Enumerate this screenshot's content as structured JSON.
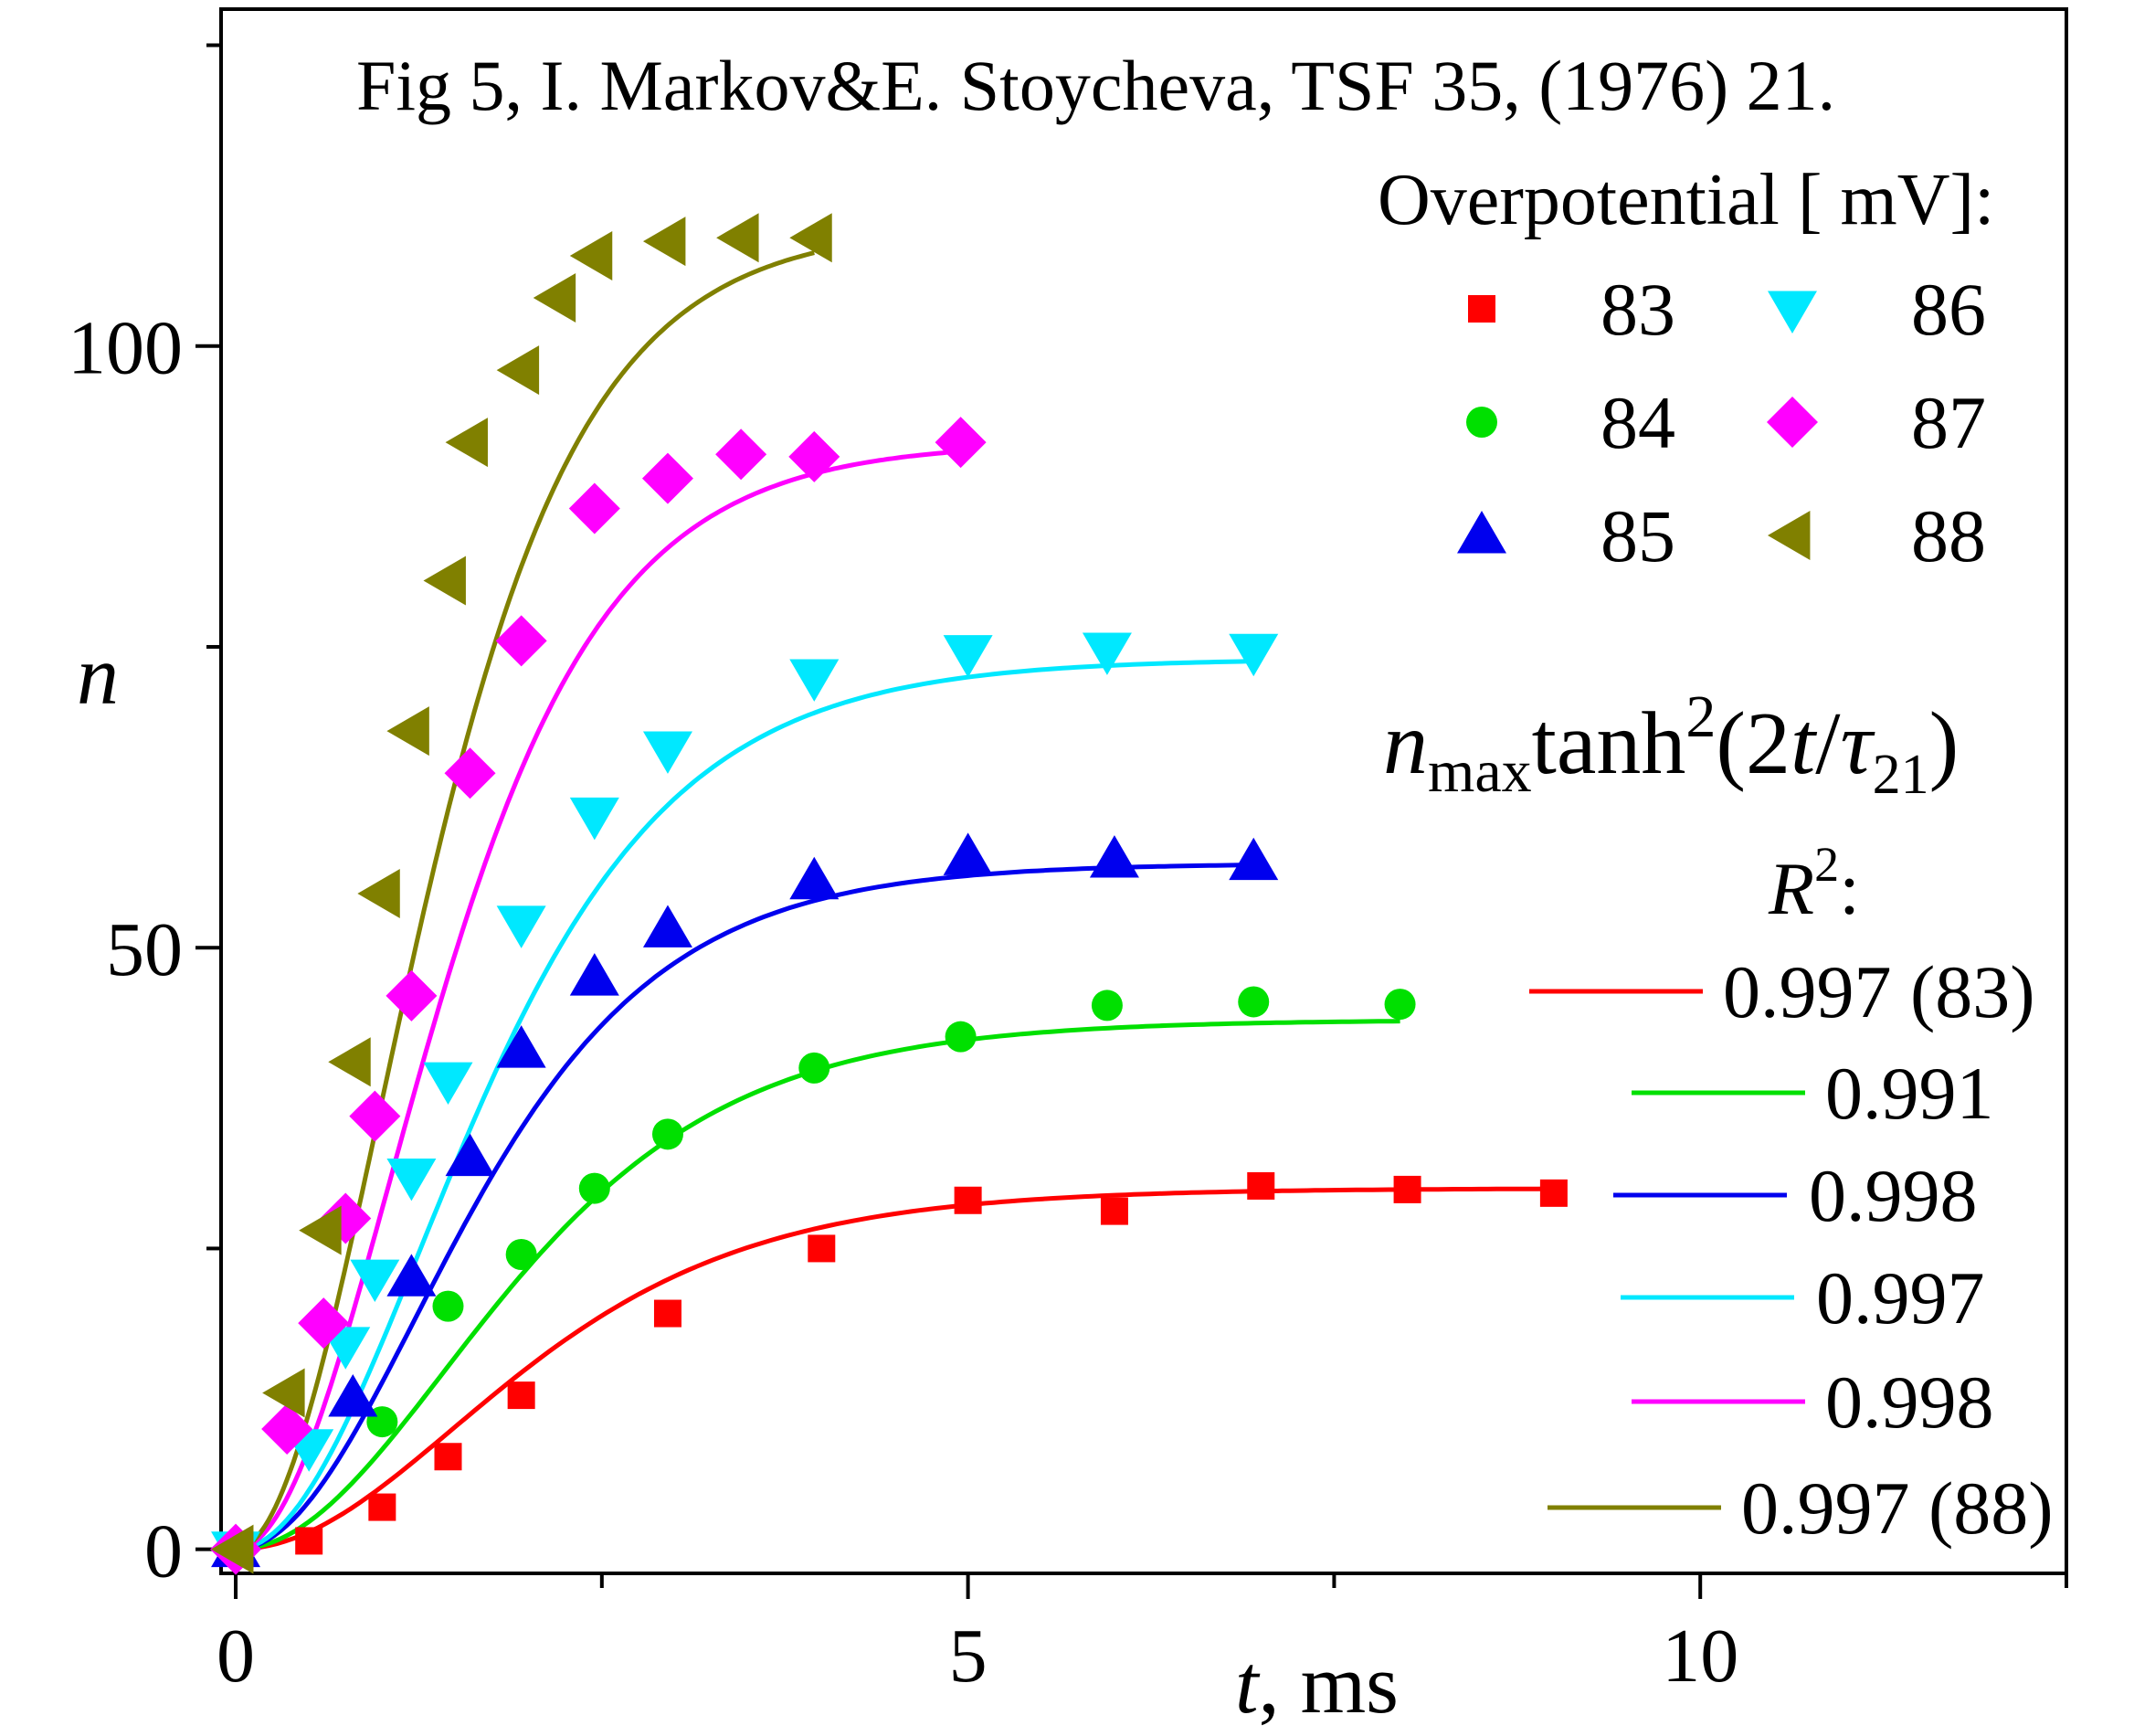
{
  "chart_data": {
    "type": "scatter",
    "title": "Fig 5,  I. Markov&E. Stoycheva, TSF 35, (1976) 21.",
    "xlabel": {
      "var": "t",
      "unit": ", ms"
    },
    "ylabel": "n",
    "xlim": [
      -0.1,
      12.5
    ],
    "ylim": [
      -2,
      128
    ],
    "x_ticks": [
      {
        "value": 0,
        "label": "0"
      },
      {
        "value": 5,
        "label": "5"
      },
      {
        "value": 10,
        "label": "10"
      }
    ],
    "y_ticks": [
      {
        "value": 0,
        "label": "0"
      },
      {
        "value": 50,
        "label": "50"
      },
      {
        "value": 100,
        "label": "100"
      }
    ],
    "x_minor_ticks": [
      2.5,
      7.5,
      12.5
    ],
    "y_minor_ticks": [
      25,
      75,
      125
    ],
    "legend_title": "Overpotential [ mV]:",
    "fit_label": {
      "n": "n",
      "max": "max",
      "tanh": "tanh",
      "sq": "2",
      "open": "(2",
      "t": "t",
      "slash": "/",
      "tau": "τ",
      "sub21": "21",
      "close": ")"
    },
    "r2_label": {
      "R": "R",
      "sq": "2",
      "colon": ":"
    },
    "series": [
      {
        "name": "83",
        "color": "#ff0000",
        "marker": "square",
        "nmax": 30,
        "tau": 4.5,
        "r2": "0.997 (83)",
        "x": [
          0.0,
          0.5,
          1.0,
          1.45,
          1.95,
          2.95,
          4.0,
          5.0,
          6.0,
          7.0,
          8.0,
          9.0
        ],
        "y": [
          0.0,
          0.7,
          3.5,
          7.7,
          12.8,
          19.6,
          25.0,
          29.0,
          28.1,
          30.2,
          29.9,
          29.6
        ]
      },
      {
        "name": "84",
        "color": "#00e000",
        "marker": "circle",
        "nmax": 44,
        "tau": 4.3,
        "r2": "0.991",
        "x": [
          0.0,
          1.0,
          1.45,
          1.95,
          2.45,
          2.95,
          3.95,
          4.95,
          5.95,
          6.95,
          7.95
        ],
        "y": [
          0.0,
          10.6,
          20.2,
          24.5,
          30.0,
          34.5,
          40.0,
          42.6,
          45.2,
          45.5,
          45.3
        ]
      },
      {
        "name": "85",
        "color": "#0000ee",
        "marker": "triangle-up",
        "nmax": 57,
        "tau": 3.7,
        "r2": "0.998",
        "x": [
          0.0,
          0.8,
          1.2,
          1.6,
          1.95,
          2.45,
          2.95,
          3.95,
          5.0,
          6.0,
          6.95
        ],
        "y": [
          0.0,
          12.5,
          22.5,
          32.5,
          41.5,
          47.5,
          51.5,
          55.5,
          57.5,
          57.3,
          57.1
        ]
      },
      {
        "name": "86",
        "color": "#00e8ff",
        "marker": "triangle-down",
        "nmax": 74,
        "tau": 3.8,
        "r2": "0.997",
        "x": [
          0.0,
          0.5,
          0.75,
          0.95,
          1.2,
          1.45,
          1.95,
          2.45,
          2.95,
          3.95,
          5.0,
          5.95,
          6.95
        ],
        "y": [
          0.0,
          8.5,
          17.0,
          22.6,
          31.0,
          39.0,
          52.0,
          61.0,
          66.5,
          72.5,
          74.5,
          74.7,
          74.6
        ]
      },
      {
        "name": "87",
        "color": "#ff00ff",
        "marker": "diamond",
        "nmax": 92,
        "tau": 3.2,
        "r2": "0.998",
        "x": [
          0.0,
          0.35,
          0.6,
          0.75,
          0.95,
          1.2,
          1.6,
          1.95,
          2.45,
          2.95,
          3.45,
          3.95,
          4.95
        ],
        "y": [
          0.0,
          10.0,
          18.8,
          27.5,
          36.0,
          46.0,
          64.5,
          75.5,
          86.5,
          89.0,
          91.0,
          90.8,
          92.0
        ]
      },
      {
        "name": "88",
        "color": "#808000",
        "marker": "triangle-left",
        "nmax": 110,
        "tau": 3.0,
        "r2": "0.997 (88)",
        "x": [
          0.0,
          0.35,
          0.6,
          0.8,
          1.0,
          1.2,
          1.45,
          1.6,
          1.95,
          2.2,
          2.45,
          2.95,
          3.45,
          3.95
        ],
        "y": [
          0.0,
          13.0,
          26.5,
          40.5,
          54.5,
          68.0,
          80.5,
          92.0,
          98.0,
          104.0,
          107.5,
          108.7,
          109.0,
          109.0
        ]
      }
    ]
  }
}
